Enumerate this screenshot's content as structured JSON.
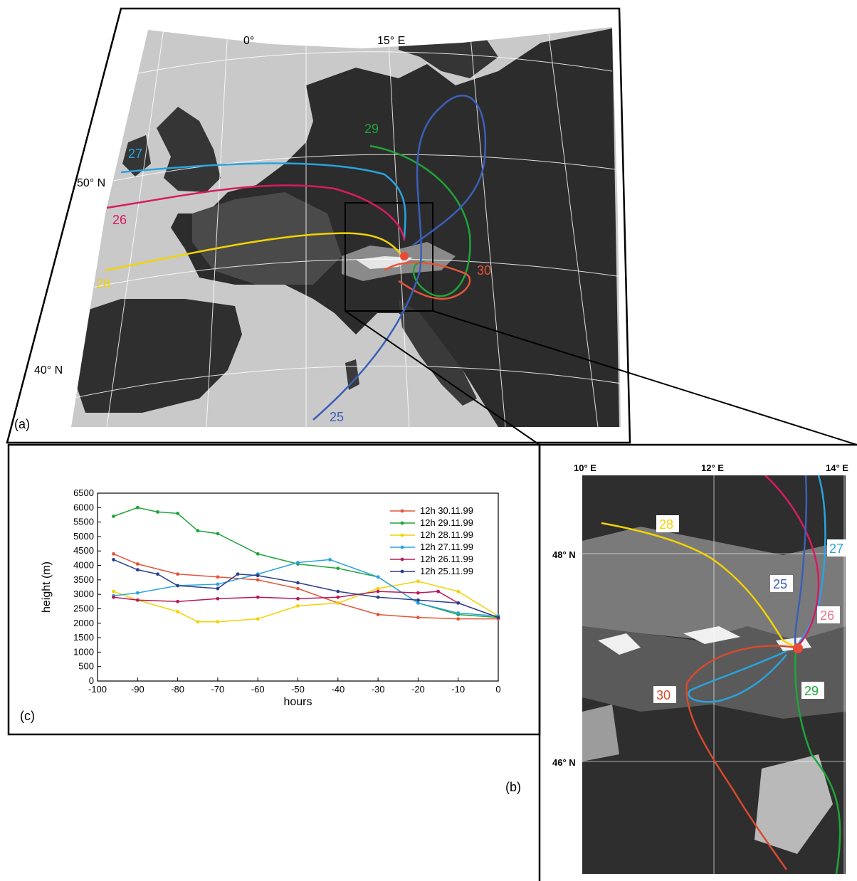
{
  "panel_a": {
    "label": "(a)",
    "lon_labels": [
      "0°",
      "15° E"
    ],
    "lat_labels": [
      "50° N",
      "40° N"
    ],
    "trajectory_labels": [
      {
        "day": "27",
        "color": "#29a3df"
      },
      {
        "day": "26",
        "color": "#d81b60"
      },
      {
        "day": "28",
        "color": "#f2d300"
      },
      {
        "day": "29",
        "color": "#1fa43a"
      },
      {
        "day": "30",
        "color": "#e4553a"
      },
      {
        "day": "25",
        "color": "#3b5fb8"
      }
    ]
  },
  "panel_b": {
    "label": "(b)",
    "lon_labels": [
      "10° E",
      "12° E",
      "14° E"
    ],
    "lat_labels": [
      "48° N",
      "46° N"
    ],
    "trajectory_labels": [
      {
        "day": "28",
        "color": "#f2d300"
      },
      {
        "day": "27",
        "color": "#29a3df"
      },
      {
        "day": "25",
        "color": "#3b5fb8"
      },
      {
        "day": "26",
        "color": "#e8788f"
      },
      {
        "day": "30",
        "color": "#d64a2e"
      },
      {
        "day": "29",
        "color": "#1fa43a"
      }
    ]
  },
  "panel_c": {
    "label": "(c)"
  },
  "chart_data": {
    "type": "line",
    "xlabel": "hours",
    "ylabel": "height (m)",
    "xlim": [
      -100,
      0
    ],
    "ylim": [
      0,
      6500
    ],
    "xticks": [
      -100,
      -90,
      -80,
      -70,
      -60,
      -50,
      -40,
      -30,
      -20,
      -10,
      0
    ],
    "yticks": [
      0,
      500,
      1000,
      1500,
      2000,
      2500,
      3000,
      3500,
      4000,
      4500,
      5000,
      5500,
      6000,
      6500
    ],
    "legend_position": "top-right",
    "series": [
      {
        "name": "12h 30.11.99",
        "color": "#e4553a",
        "x": [
          -96,
          -90,
          -80,
          -70,
          -60,
          -50,
          -40,
          -30,
          -20,
          -10,
          0
        ],
        "y": [
          4400,
          4050,
          3700,
          3600,
          3500,
          3200,
          2700,
          2300,
          2200,
          2150,
          2150
        ]
      },
      {
        "name": "12h 29.11.99",
        "color": "#1fa43a",
        "x": [
          -96,
          -90,
          -85,
          -80,
          -75,
          -70,
          -60,
          -50,
          -40,
          -30,
          -20,
          -10,
          0
        ],
        "y": [
          5700,
          6000,
          5850,
          5800,
          5200,
          5100,
          4400,
          4050,
          3900,
          3600,
          2700,
          2300,
          2200
        ]
      },
      {
        "name": "12h 28.11.99",
        "color": "#f2d300",
        "x": [
          -96,
          -90,
          -80,
          -75,
          -70,
          -60,
          -50,
          -40,
          -30,
          -20,
          -10,
          0
        ],
        "y": [
          3100,
          2800,
          2400,
          2050,
          2050,
          2150,
          2600,
          2700,
          3200,
          3450,
          3100,
          2250
        ]
      },
      {
        "name": "12h 27.11.99",
        "color": "#29a3df",
        "x": [
          -96,
          -90,
          -80,
          -70,
          -60,
          -50,
          -42,
          -30,
          -20,
          -10,
          0
        ],
        "y": [
          2950,
          3050,
          3300,
          3350,
          3700,
          4100,
          4200,
          3600,
          2700,
          2350,
          2250
        ]
      },
      {
        "name": "12h 26.11.99",
        "color": "#b5195a",
        "x": [
          -96,
          -90,
          -80,
          -70,
          -60,
          -50,
          -40,
          -30,
          -20,
          -15,
          -10,
          0
        ],
        "y": [
          2900,
          2800,
          2750,
          2850,
          2900,
          2850,
          2900,
          3100,
          3050,
          3100,
          2700,
          2200
        ]
      },
      {
        "name": "12h 25.11.99",
        "color": "#2b3f8c",
        "x": [
          -96,
          -90,
          -85,
          -80,
          -70,
          -65,
          -60,
          -50,
          -40,
          -30,
          -20,
          -10,
          0
        ],
        "y": [
          4200,
          3850,
          3700,
          3300,
          3200,
          3700,
          3650,
          3400,
          3100,
          2900,
          2800,
          2700,
          2200
        ]
      }
    ]
  }
}
